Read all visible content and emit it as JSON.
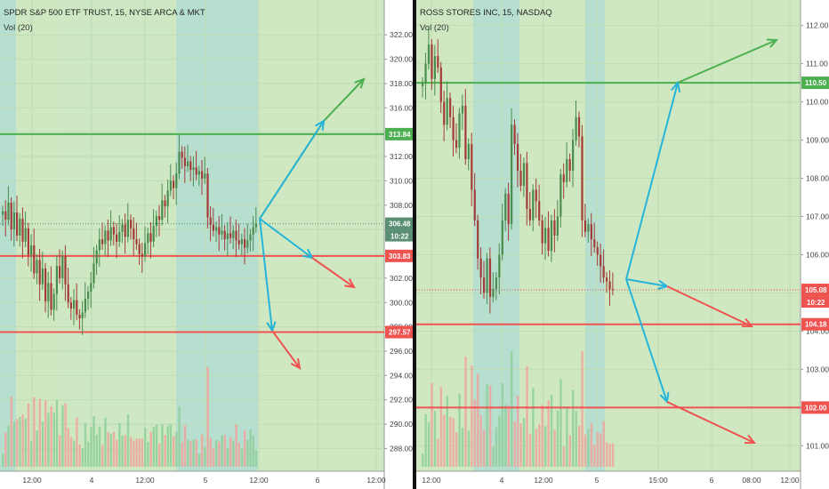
{
  "charts": [
    {
      "title": "SPDR S&P 500 ETF TRUST, 15, NYSE ARCA & MKT",
      "indicator": "Vol (20)",
      "price_min": 286.5,
      "price_max": 324.5,
      "y_ticks": [
        "322.00",
        "320.00",
        "318.00",
        "316.00",
        "314.00",
        "312.00",
        "310.00",
        "308.00",
        "306.00",
        "304.00",
        "302.00",
        "300.00",
        "298.00",
        "296.00",
        "294.00",
        "292.00",
        "290.00",
        "288.00"
      ],
      "x_ticks": [
        "12:00",
        "4",
        "12:00",
        "5",
        "12:00",
        "6",
        "12:00"
      ],
      "levels": [
        {
          "label": "313.84",
          "value": 313.84,
          "color": "#4caf50"
        },
        {
          "label": "303.83",
          "value": 303.83,
          "color": "#ef5350"
        },
        {
          "label": "297.57",
          "value": 297.57,
          "color": "#ef5350"
        }
      ],
      "current_price": "306.48",
      "countdown": "10:22",
      "last_price_color": "#5b8f74"
    },
    {
      "title": "ROSS STORES INC, 15, NASDAQ",
      "indicator": "Vol (20)",
      "price_min": 100.45,
      "price_max": 112.55,
      "y_ticks": [
        "112.00",
        "111.00",
        "110.00",
        "109.00",
        "108.00",
        "107.00",
        "106.00",
        "105.00",
        "104.00",
        "103.00",
        "102.00",
        "101.00"
      ],
      "x_ticks": [
        "12:00",
        "4",
        "12:00",
        "5",
        "15:00",
        "6",
        "08:00",
        "12:00"
      ],
      "levels": [
        {
          "label": "110.50",
          "value": 110.5,
          "color": "#4caf50"
        },
        {
          "label": "104.18",
          "value": 104.18,
          "color": "#ef5350"
        },
        {
          "label": "102.00",
          "value": 102.0,
          "color": "#ef5350"
        }
      ],
      "current_price": "105.08",
      "countdown": "10:22",
      "last_price_color": "#ef5350"
    }
  ],
  "chart_data": [
    {
      "type": "candlestick",
      "title": "SPDR S&P 500 ETF TRUST, 15, NYSE ARCA & MKT",
      "ylim": [
        286.5,
        324.5
      ],
      "closes": [
        307.5,
        306.8,
        308.2,
        306.0,
        307.4,
        305.5,
        306.9,
        305.0,
        306.1,
        303.9,
        304.7,
        302.4,
        303.5,
        301.5,
        302.8,
        300.1,
        301.6,
        299.4,
        300.7,
        303.0,
        302.0,
        303.8,
        301.5,
        300.0,
        299.5,
        300.2,
        299.0,
        298.7,
        299.2,
        300.3,
        300.9,
        301.6,
        303.2,
        304.3,
        305.2,
        304.8,
        305.9,
        305.1,
        306.2,
        305.6,
        305.0,
        305.8,
        306.4,
        305.4,
        306.8,
        306.1,
        305.2,
        304.8,
        304.0,
        303.8,
        304.9,
        305.7,
        305.0,
        306.3,
        307.1,
        306.8,
        308.4,
        307.9,
        309.2,
        310.0,
        309.4,
        310.6,
        312.4,
        311.9,
        311.2,
        311.6,
        310.9,
        311.1,
        310.5,
        310.8,
        310.2,
        310.6,
        307.0,
        306.4,
        305.9,
        306.2,
        305.6,
        305.9,
        305.2,
        305.7,
        305.3,
        305.9,
        305.1,
        304.8,
        305.2,
        304.5,
        305.1,
        305.6,
        306.2,
        306.48
      ],
      "opens_follow_previous_close": true,
      "has_volume": true
    },
    {
      "type": "candlestick",
      "title": "ROSS STORES INC, 15, NASDAQ",
      "ylim": [
        100.45,
        112.55
      ],
      "closes": [
        110.5,
        111.0,
        111.5,
        110.6,
        111.2,
        110.9,
        110.0,
        109.4,
        110.1,
        109.6,
        109.0,
        108.8,
        109.7,
        109.9,
        108.5,
        108.9,
        107.7,
        106.9,
        105.9,
        105.4,
        105.0,
        105.9,
        104.9,
        105.1,
        105.4,
        106.0,
        106.9,
        107.6,
        106.8,
        109.4,
        108.9,
        108.2,
        107.8,
        108.4,
        107.2,
        106.9,
        107.7,
        107.4,
        106.9,
        106.3,
        106.7,
        106.1,
        106.9,
        106.5,
        107.0,
        108.1,
        107.9,
        108.5,
        108.2,
        109.0,
        109.6,
        109.1,
        106.9,
        106.6,
        106.8,
        106.4,
        106.2,
        106.0,
        105.7,
        105.4,
        105.3,
        105.1,
        105.08
      ],
      "opens_follow_previous_close": true,
      "has_volume": true
    }
  ]
}
